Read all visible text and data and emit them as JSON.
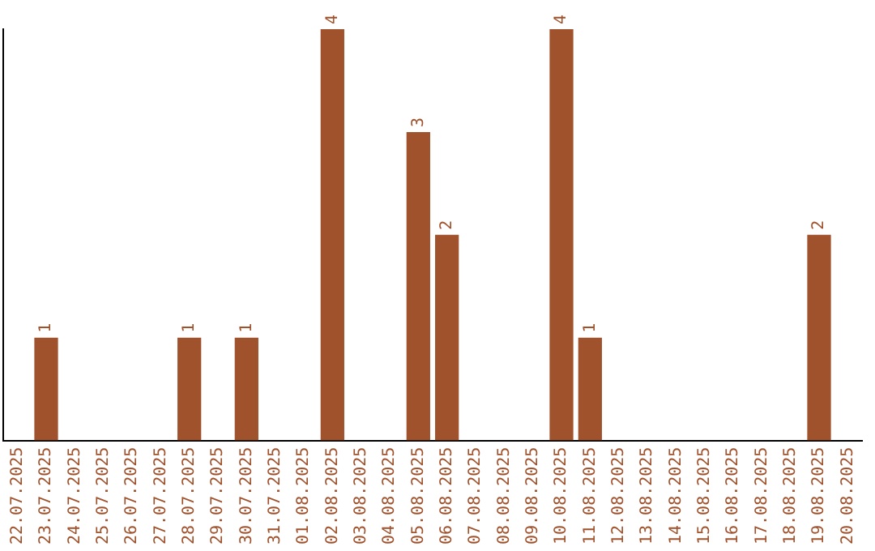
{
  "chart_data": {
    "type": "bar",
    "categories": [
      "22.07.2025",
      "23.07.2025",
      "24.07.2025",
      "25.07.2025",
      "26.07.2025",
      "27.07.2025",
      "28.07.2025",
      "29.07.2025",
      "30.07.2025",
      "31.07.2025",
      "01.08.2025",
      "02.08.2025",
      "03.08.2025",
      "04.08.2025",
      "05.08.2025",
      "06.08.2025",
      "07.08.2025",
      "08.08.2025",
      "09.08.2025",
      "10.08.2025",
      "11.08.2025",
      "12.08.2025",
      "13.08.2025",
      "14.08.2025",
      "15.08.2025",
      "16.08.2025",
      "17.08.2025",
      "18.08.2025",
      "19.08.2025",
      "20.08.2025"
    ],
    "values": [
      null,
      1,
      null,
      null,
      null,
      null,
      1,
      null,
      1,
      null,
      null,
      4,
      null,
      null,
      3,
      2,
      null,
      null,
      null,
      4,
      1,
      null,
      null,
      null,
      null,
      null,
      null,
      null,
      2,
      null
    ],
    "color": "#a0522d",
    "ylim": [
      0,
      4
    ],
    "tick_labels": "x",
    "data_labels": true,
    "grid": false,
    "legend": false
  }
}
